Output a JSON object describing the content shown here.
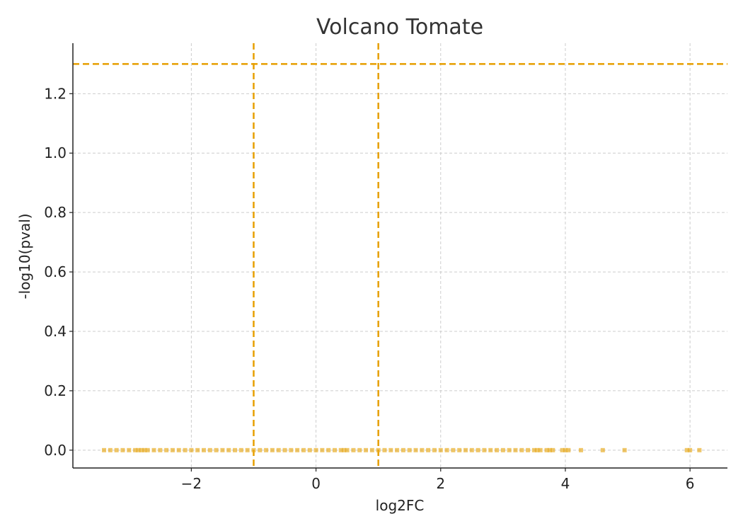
{
  "chart_data": {
    "type": "scatter",
    "title": "Volcano Tomate",
    "xlabel": "log2FC",
    "ylabel": "-log10(pval)",
    "xlim": [
      -3.9,
      6.6
    ],
    "ylim": [
      -0.06,
      1.37
    ],
    "x_ticks": [
      -2,
      0,
      2,
      4,
      6
    ],
    "x_tick_labels": [
      "−2",
      "0",
      "2",
      "4",
      "6"
    ],
    "y_ticks": [
      0.0,
      0.2,
      0.4,
      0.6,
      0.8,
      1.0,
      1.2
    ],
    "y_tick_labels": [
      "0.0",
      "0.2",
      "0.4",
      "0.6",
      "0.8",
      "1.0",
      "1.2"
    ],
    "grid": true,
    "threshold_lines": {
      "vertical": [
        -1,
        1
      ],
      "horizontal": [
        1.3
      ],
      "style": "dashed"
    },
    "colors": {
      "points": "#e6a817",
      "threshold": "#e69f00",
      "grid": "#cccccc",
      "axis": "#222222"
    },
    "series": [
      {
        "x": [
          -3.4,
          -3.3,
          -3.2,
          -3.1,
          -3.0,
          -2.9,
          -2.85,
          -2.8,
          -2.75,
          -2.7,
          -2.6,
          -2.5,
          -2.4,
          -2.3,
          -2.2,
          -2.1,
          -2.0,
          -1.9,
          -1.8,
          -1.7,
          -1.6,
          -1.5,
          -1.4,
          -1.3,
          -1.2,
          -1.1,
          -1.0,
          -0.9,
          -0.8,
          -0.7,
          -0.6,
          -0.5,
          -0.4,
          -0.3,
          -0.2,
          -0.1,
          0.0,
          0.1,
          0.2,
          0.3,
          0.4,
          0.45,
          0.5,
          0.6,
          0.7,
          0.8,
          0.9,
          1.0,
          1.1,
          1.2,
          1.3,
          1.4,
          1.5,
          1.6,
          1.7,
          1.8,
          1.9,
          2.0,
          2.1,
          2.2,
          2.3,
          2.4,
          2.5,
          2.6,
          2.7,
          2.8,
          2.9,
          3.0,
          3.1,
          3.2,
          3.3,
          3.4,
          3.5,
          3.55,
          3.6,
          3.7,
          3.75,
          3.8,
          3.95,
          4.0,
          4.05,
          4.25,
          4.6,
          4.95,
          5.95,
          6.0,
          6.15
        ],
        "y": [
          0.0,
          0.0,
          0.0,
          0.0,
          0.0,
          0.0,
          0.0,
          0.0,
          0.0,
          0.0,
          0.0,
          0.0,
          0.0,
          0.0,
          0.0,
          0.0,
          0.0,
          0.0,
          0.0,
          0.0,
          0.0,
          0.0,
          0.0,
          0.0,
          0.0,
          0.0,
          0.0,
          0.0,
          0.0,
          0.0,
          0.0,
          0.0,
          0.0,
          0.0,
          0.0,
          0.0,
          0.0,
          0.0,
          0.0,
          0.0,
          0.0,
          0.0,
          0.0,
          0.0,
          0.0,
          0.0,
          0.0,
          0.0,
          0.0,
          0.0,
          0.0,
          0.0,
          0.0,
          0.0,
          0.0,
          0.0,
          0.0,
          0.0,
          0.0,
          0.0,
          0.0,
          0.0,
          0.0,
          0.0,
          0.0,
          0.0,
          0.0,
          0.0,
          0.0,
          0.0,
          0.0,
          0.0,
          0.0,
          0.0,
          0.0,
          0.0,
          0.0,
          0.0,
          0.0,
          0.0,
          0.0,
          0.0,
          0.0,
          0.0,
          0.0,
          0.0,
          0.0
        ]
      }
    ]
  }
}
